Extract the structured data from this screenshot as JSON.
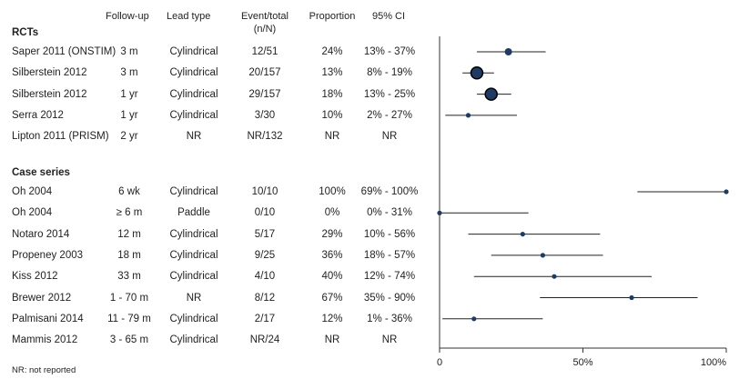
{
  "headers": {
    "follow_up": "Follow-up",
    "lead_type": "Lead type",
    "event_total": "Event/total",
    "event_total_sub": "(n/N)",
    "proportion": "Proportion",
    "ci": "95% CI"
  },
  "footnote": "NR: not reported",
  "chart_data": {
    "type": "forest",
    "x_axis": {
      "min": 0,
      "max": 100,
      "ticks": [
        0,
        50,
        100
      ],
      "tick_labels": [
        "0",
        "50%",
        "100%"
      ]
    },
    "colors": {
      "marker": "#1f3b63",
      "marker_edge": "#000000",
      "line": "#222222"
    },
    "sections": [
      {
        "label": "RCTs",
        "rows": [
          {
            "study": "Saper 2011 (ONSTIM)",
            "follow_up": "3 m",
            "lead_type": "Cylindrical",
            "event_total": "12/51",
            "proportion_text": "24%",
            "ci_text": "13% - 37%",
            "estimate": 24,
            "ci_low": 13,
            "ci_high": 37,
            "weight": 51
          },
          {
            "study": "Silberstein 2012",
            "follow_up": "3 m",
            "lead_type": "Cylindrical",
            "event_total": "20/157",
            "proportion_text": "13%",
            "ci_text": "8% - 19%",
            "estimate": 13,
            "ci_low": 8,
            "ci_high": 19,
            "weight": 157
          },
          {
            "study": "Silberstein 2012",
            "follow_up": "1 yr",
            "lead_type": "Cylindrical",
            "event_total": "29/157",
            "proportion_text": "18%",
            "ci_text": "13% - 25%",
            "estimate": 18,
            "ci_low": 13,
            "ci_high": 25,
            "weight": 157
          },
          {
            "study": "Serra 2012",
            "follow_up": "1 yr",
            "lead_type": "Cylindrical",
            "event_total": "3/30",
            "proportion_text": "10%",
            "ci_text": "2% - 27%",
            "estimate": 10,
            "ci_low": 2,
            "ci_high": 27,
            "weight": 30
          },
          {
            "study": "Lipton 2011 (PRISM)",
            "follow_up": "2 yr",
            "lead_type": "NR",
            "event_total": "NR/132",
            "proportion_text": "NR",
            "ci_text": "NR",
            "estimate": null,
            "ci_low": null,
            "ci_high": null,
            "weight": 0
          }
        ]
      },
      {
        "label": "Case series",
        "rows": [
          {
            "study": "Oh 2004",
            "follow_up": "6 wk",
            "lead_type": "Cylindrical",
            "event_total": "10/10",
            "proportion_text": "100%",
            "ci_text": "69% - 100%",
            "estimate": 100,
            "ci_low": 69,
            "ci_high": 100,
            "weight": 10
          },
          {
            "study": "Oh 2004",
            "follow_up": "≥ 6 m",
            "lead_type": "Paddle",
            "event_total": "0/10",
            "proportion_text": "0%",
            "ci_text": "0% - 31%",
            "estimate": 0,
            "ci_low": 0,
            "ci_high": 31,
            "weight": 10
          },
          {
            "study": "Notaro 2014",
            "follow_up": "12 m",
            "lead_type": "Cylindrical",
            "event_total": "5/17",
            "proportion_text": "29%",
            "ci_text": "10% - 56%",
            "estimate": 29,
            "ci_low": 10,
            "ci_high": 56,
            "weight": 17
          },
          {
            "study": "Propeney 2003",
            "follow_up": "18 m",
            "lead_type": "Cylindrical",
            "event_total": "9/25",
            "proportion_text": "36%",
            "ci_text": "18% - 57%",
            "estimate": 36,
            "ci_low": 18,
            "ci_high": 57,
            "weight": 25
          },
          {
            "study": "Kiss 2012",
            "follow_up": "33 m",
            "lead_type": "Cylindrical",
            "event_total": "4/10",
            "proportion_text": "40%",
            "ci_text": "12% - 74%",
            "estimate": 40,
            "ci_low": 12,
            "ci_high": 74,
            "weight": 10
          },
          {
            "study": "Brewer 2012",
            "follow_up": "1 - 70 m",
            "lead_type": "NR",
            "event_total": "8/12",
            "proportion_text": "67%",
            "ci_text": "35% - 90%",
            "estimate": 67,
            "ci_low": 35,
            "ci_high": 90,
            "weight": 12
          },
          {
            "study": "Palmisani 2014",
            "follow_up": "11 - 79 m",
            "lead_type": "Cylindrical",
            "event_total": "2/17",
            "proportion_text": "12%",
            "ci_text": "1% - 36%",
            "estimate": 12,
            "ci_low": 1,
            "ci_high": 36,
            "weight": 17
          },
          {
            "study": "Mammis 2012",
            "follow_up": "3 - 65 m",
            "lead_type": "Cylindrical",
            "event_total": "NR/24",
            "proportion_text": "NR",
            "ci_text": "NR",
            "estimate": null,
            "ci_low": null,
            "ci_high": null,
            "weight": 0
          }
        ]
      }
    ]
  }
}
